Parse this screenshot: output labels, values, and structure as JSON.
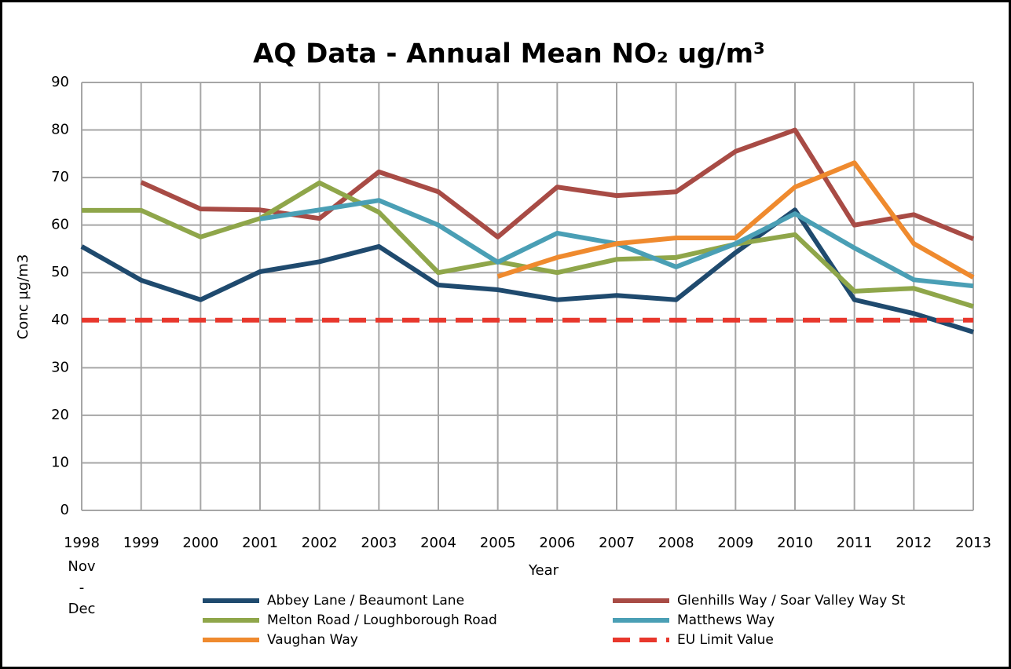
{
  "chart_data": {
    "type": "line",
    "title": "AQ Data - Annual Mean NO₂ ug/m³",
    "x_label": "Year",
    "y_label": "Conc µg/m3",
    "categories": [
      "1998",
      "1999",
      "2000",
      "2001",
      "2002",
      "2003",
      "2004",
      "2005",
      "2006",
      "2007",
      "2008",
      "2009",
      "2010",
      "2011",
      "2012",
      "2013"
    ],
    "first_category_note": [
      "Nov",
      "-",
      "Dec"
    ],
    "ylim": [
      0,
      90
    ],
    "yticks": [
      0,
      10,
      20,
      30,
      40,
      50,
      60,
      70,
      80,
      90
    ],
    "grid": true,
    "legend": "bottom",
    "series": [
      {
        "name": "Abbey Lane / Beaumont Lane",
        "color": "#1f4a6e",
        "values": [
          55.5,
          48.4,
          44.3,
          50.2,
          52.3,
          55.5,
          47.4,
          46.4,
          44.3,
          45.2,
          44.3,
          54.2,
          63.2,
          44.3,
          41.4,
          37.5
        ]
      },
      {
        "name": "Glenhills Way / Soar Valley Way St",
        "color": "#a84b45",
        "values": [
          null,
          69,
          63.4,
          63.2,
          61.4,
          71.2,
          67,
          57.5,
          68,
          66.2,
          67,
          75.5,
          80,
          60,
          62.2,
          57.1
        ]
      },
      {
        "name": "Melton Road / Loughborough Road",
        "color": "#8fa64a",
        "values": [
          63.1,
          63.1,
          57.5,
          61.4,
          68.9,
          62.7,
          50,
          52.3,
          50,
          52.8,
          53.2,
          56,
          58,
          46.1,
          46.7,
          42.9
        ]
      },
      {
        "name": "Matthews Way",
        "color": "#4a9fb5",
        "values": [
          null,
          null,
          null,
          61.3,
          63.2,
          65.2,
          60,
          52.2,
          58.3,
          56.1,
          51.2,
          56.1,
          62.4,
          55.2,
          48.5,
          47.2
        ]
      },
      {
        "name": "Vaughan Way",
        "color": "#ef8a2e",
        "values": [
          null,
          null,
          null,
          null,
          null,
          null,
          null,
          49.2,
          53.2,
          56.1,
          57.3,
          57.3,
          68,
          73.1,
          56.1,
          49
        ]
      },
      {
        "name": "EU Limit Value",
        "color": "#e8372c",
        "dashed": true,
        "values": [
          40,
          40,
          40,
          40,
          40,
          40,
          40,
          40,
          40,
          40,
          40,
          40,
          40,
          40,
          40,
          40
        ]
      }
    ]
  }
}
